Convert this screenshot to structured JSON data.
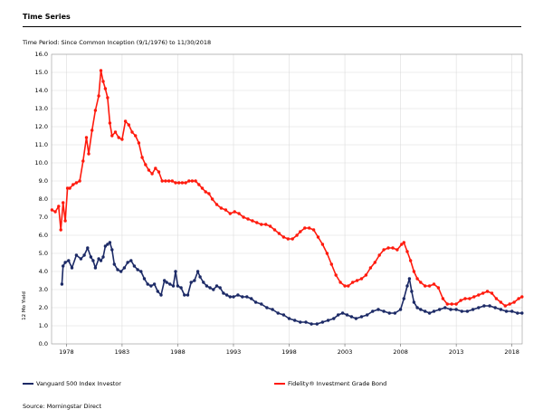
{
  "title": "Time Series",
  "time_period": "Time Period: Since Common Inception (9/1/1976) to 11/30/2018",
  "source": "Source: Morningstar Direct",
  "colors": {
    "vanguard": "#1c2a66",
    "fidelity": "#ff1a0d",
    "grid": "#dcdcdc"
  },
  "chart_data": {
    "type": "line",
    "title": "",
    "xlabel": "",
    "ylabel": "12 Mo Yield",
    "xlim": [
      1976.67,
      2018.92
    ],
    "ylim": [
      0,
      16
    ],
    "grid": true,
    "legend_position": "bottom",
    "x_ticks": [
      "1978",
      "1983",
      "1988",
      "1993",
      "1998",
      "2003",
      "2008",
      "2013",
      "2018"
    ],
    "y_ticks": [
      "0.0",
      "1.0",
      "2.0",
      "3.0",
      "4.0",
      "5.0",
      "6.0",
      "7.0",
      "8.0",
      "9.0",
      "10.0",
      "11.0",
      "12.0",
      "13.0",
      "14.0",
      "15.0",
      "16.0"
    ],
    "series": [
      {
        "name": "Vanguard 500 Index Investor",
        "color": "#1c2a66",
        "x": [
          1977.6,
          1977.7,
          1977.9,
          1978.2,
          1978.5,
          1978.9,
          1979.3,
          1979.6,
          1979.9,
          1980.2,
          1980.4,
          1980.6,
          1980.9,
          1981.1,
          1981.3,
          1981.5,
          1981.7,
          1981.9,
          1982.1,
          1982.3,
          1982.6,
          1982.9,
          1983.2,
          1983.5,
          1983.8,
          1984.1,
          1984.4,
          1984.7,
          1985.0,
          1985.3,
          1985.6,
          1985.9,
          1986.2,
          1986.5,
          1986.8,
          1987.0,
          1987.3,
          1987.6,
          1987.8,
          1988.0,
          1988.3,
          1988.6,
          1988.9,
          1989.2,
          1989.5,
          1989.8,
          1990.0,
          1990.3,
          1990.6,
          1990.9,
          1991.2,
          1991.5,
          1991.8,
          1992.1,
          1992.4,
          1992.7,
          1993.0,
          1993.4,
          1993.8,
          1994.2,
          1994.6,
          1995.0,
          1995.5,
          1996.0,
          1996.5,
          1997.0,
          1997.5,
          1998.0,
          1998.5,
          1999.0,
          1999.5,
          2000.0,
          2000.5,
          2001.0,
          2001.5,
          2002.0,
          2002.4,
          2002.8,
          2003.2,
          2003.6,
          2004.0,
          2004.5,
          2005.0,
          2005.5,
          2006.0,
          2006.5,
          2007.0,
          2007.5,
          2008.0,
          2008.3,
          2008.6,
          2008.8,
          2009.0,
          2009.2,
          2009.5,
          2009.8,
          2010.2,
          2010.6,
          2011.0,
          2011.5,
          2012.0,
          2012.5,
          2013.0,
          2013.5,
          2014.0,
          2014.5,
          2015.0,
          2015.5,
          2016.0,
          2016.5,
          2017.0,
          2017.5,
          2018.0,
          2018.5,
          2018.9
        ],
        "values": [
          3.3,
          4.3,
          4.5,
          4.6,
          4.2,
          4.9,
          4.7,
          4.9,
          5.3,
          4.8,
          4.6,
          4.2,
          4.7,
          4.6,
          4.8,
          5.4,
          5.5,
          5.6,
          5.2,
          4.4,
          4.1,
          4.0,
          4.2,
          4.5,
          4.6,
          4.3,
          4.1,
          4.0,
          3.6,
          3.3,
          3.2,
          3.3,
          2.9,
          2.7,
          3.5,
          3.4,
          3.3,
          3.2,
          4.0,
          3.2,
          3.1,
          2.7,
          2.7,
          3.4,
          3.5,
          4.0,
          3.7,
          3.4,
          3.2,
          3.1,
          3.0,
          3.2,
          3.1,
          2.8,
          2.7,
          2.6,
          2.6,
          2.7,
          2.6,
          2.6,
          2.5,
          2.3,
          2.2,
          2.0,
          1.9,
          1.7,
          1.6,
          1.4,
          1.3,
          1.2,
          1.2,
          1.1,
          1.1,
          1.2,
          1.3,
          1.4,
          1.6,
          1.7,
          1.6,
          1.5,
          1.4,
          1.5,
          1.6,
          1.8,
          1.9,
          1.8,
          1.7,
          1.7,
          1.9,
          2.5,
          3.2,
          3.6,
          2.9,
          2.3,
          2.0,
          1.9,
          1.8,
          1.7,
          1.8,
          1.9,
          2.0,
          1.9,
          1.9,
          1.8,
          1.8,
          1.9,
          2.0,
          2.1,
          2.1,
          2.0,
          1.9,
          1.8,
          1.8,
          1.7,
          1.7
        ]
      },
      {
        "name": "Fidelity® Investment Grade Bond",
        "color": "#ff1a0d",
        "x": [
          1976.7,
          1977.0,
          1977.3,
          1977.5,
          1977.7,
          1977.9,
          1978.1,
          1978.3,
          1978.6,
          1978.9,
          1979.2,
          1979.5,
          1979.8,
          1980.0,
          1980.3,
          1980.6,
          1980.9,
          1981.1,
          1981.3,
          1981.5,
          1981.7,
          1981.9,
          1982.1,
          1982.4,
          1982.7,
          1983.0,
          1983.3,
          1983.6,
          1983.9,
          1984.2,
          1984.5,
          1984.8,
          1985.1,
          1985.4,
          1985.7,
          1986.0,
          1986.3,
          1986.6,
          1986.9,
          1987.2,
          1987.5,
          1987.8,
          1988.1,
          1988.4,
          1988.7,
          1989.0,
          1989.3,
          1989.6,
          1989.9,
          1990.2,
          1990.5,
          1990.8,
          1991.1,
          1991.5,
          1991.9,
          1992.3,
          1992.7,
          1993.1,
          1993.5,
          1993.9,
          1994.3,
          1994.7,
          1995.1,
          1995.5,
          1995.9,
          1996.3,
          1996.7,
          1997.1,
          1997.5,
          1997.9,
          1998.3,
          1998.7,
          1999.0,
          1999.4,
          1999.8,
          2000.2,
          2000.6,
          2001.0,
          2001.4,
          2001.8,
          2002.2,
          2002.6,
          2003.0,
          2003.3,
          2003.7,
          2004.1,
          2004.5,
          2004.9,
          2005.3,
          2005.7,
          2006.1,
          2006.5,
          2006.9,
          2007.3,
          2007.7,
          2008.1,
          2008.3,
          2008.6,
          2008.9,
          2009.2,
          2009.5,
          2009.8,
          2010.2,
          2010.6,
          2011.0,
          2011.4,
          2011.8,
          2012.2,
          2012.6,
          2013.0,
          2013.4,
          2013.8,
          2014.2,
          2014.6,
          2015.0,
          2015.4,
          2015.8,
          2016.2,
          2016.6,
          2017.0,
          2017.4,
          2017.8,
          2018.2,
          2018.6,
          2018.9
        ],
        "values": [
          7.4,
          7.3,
          7.6,
          6.3,
          7.8,
          6.8,
          8.6,
          8.6,
          8.8,
          8.9,
          9.0,
          10.1,
          11.4,
          10.5,
          11.8,
          12.9,
          13.7,
          15.1,
          14.5,
          14.1,
          13.6,
          12.2,
          11.5,
          11.7,
          11.4,
          11.3,
          12.3,
          12.1,
          11.7,
          11.5,
          11.1,
          10.3,
          9.9,
          9.6,
          9.4,
          9.7,
          9.5,
          9.0,
          9.0,
          9.0,
          9.0,
          8.9,
          8.9,
          8.9,
          8.9,
          9.0,
          9.0,
          9.0,
          8.8,
          8.6,
          8.4,
          8.3,
          8.0,
          7.7,
          7.5,
          7.4,
          7.2,
          7.3,
          7.2,
          7.0,
          6.9,
          6.8,
          6.7,
          6.6,
          6.6,
          6.5,
          6.3,
          6.1,
          5.9,
          5.8,
          5.8,
          6.0,
          6.2,
          6.4,
          6.4,
          6.3,
          5.9,
          5.5,
          5.0,
          4.4,
          3.8,
          3.4,
          3.2,
          3.2,
          3.4,
          3.5,
          3.6,
          3.8,
          4.2,
          4.5,
          4.9,
          5.2,
          5.3,
          5.3,
          5.2,
          5.5,
          5.6,
          5.1,
          4.6,
          4.0,
          3.6,
          3.4,
          3.2,
          3.2,
          3.3,
          3.1,
          2.5,
          2.2,
          2.2,
          2.2,
          2.4,
          2.5,
          2.5,
          2.6,
          2.7,
          2.8,
          2.9,
          2.8,
          2.5,
          2.3,
          2.1,
          2.2,
          2.3,
          2.5,
          2.6
        ]
      }
    ]
  }
}
